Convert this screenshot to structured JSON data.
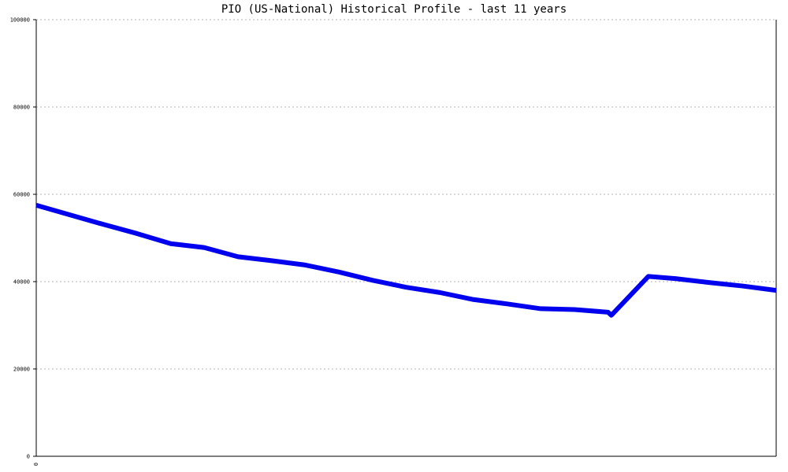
{
  "colors": {
    "series": "#0000ee",
    "grid": "#b4b4b4",
    "axis": "#000000",
    "background": "#ffffff"
  },
  "chart_data": {
    "type": "line",
    "title": "PIO (US-National) Historical Profile - last 11 years",
    "xlabel": "",
    "ylabel": "",
    "x_tick_labels": [
      "0"
    ],
    "y_tick_labels": [
      "0",
      "20000",
      "40000",
      "60000",
      "80000",
      "100000"
    ],
    "ylim": [
      0,
      100000
    ],
    "xlim": [
      0,
      22
    ],
    "grid": true,
    "series": [
      {
        "values": [
          [
            0,
            57500
          ],
          [
            1,
            55300
          ],
          [
            2,
            53100
          ],
          [
            3,
            51000
          ],
          [
            4,
            48700
          ],
          [
            5,
            47800
          ],
          [
            6,
            45700
          ],
          [
            7,
            44800
          ],
          [
            8,
            43800
          ],
          [
            9,
            42200
          ],
          [
            10,
            40300
          ],
          [
            11,
            38700
          ],
          [
            12,
            37500
          ],
          [
            13,
            35900
          ],
          [
            14,
            34900
          ],
          [
            15,
            33800
          ],
          [
            16,
            33600
          ],
          [
            17,
            33000
          ],
          [
            17.1,
            32300
          ],
          [
            18.2,
            41200
          ],
          [
            19,
            40700
          ],
          [
            20,
            39800
          ],
          [
            21,
            39000
          ],
          [
            22,
            38000
          ]
        ]
      }
    ]
  }
}
